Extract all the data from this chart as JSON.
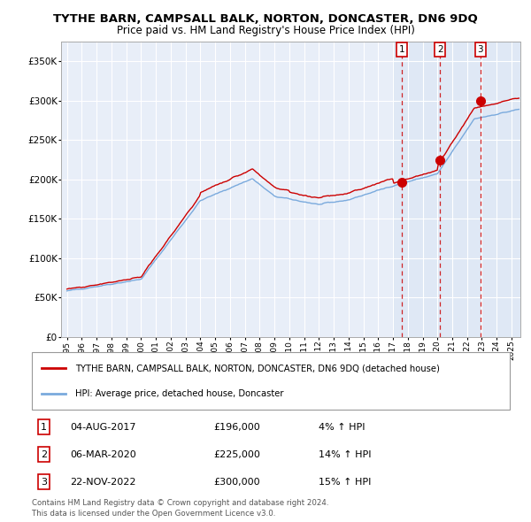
{
  "title": "TYTHE BARN, CAMPSALL BALK, NORTON, DONCASTER, DN6 9DQ",
  "subtitle": "Price paid vs. HM Land Registry's House Price Index (HPI)",
  "legend_red": "TYTHE BARN, CAMPSALL BALK, NORTON, DONCASTER, DN6 9DQ (detached house)",
  "legend_blue": "HPI: Average price, detached house, Doncaster",
  "transactions": [
    {
      "num": 1,
      "date": "04-AUG-2017",
      "price": 196000,
      "pct": "4%",
      "year": 2017.58
    },
    {
      "num": 2,
      "date": "06-MAR-2020",
      "price": 225000,
      "pct": "14%",
      "year": 2020.17
    },
    {
      "num": 3,
      "date": "22-NOV-2022",
      "price": 300000,
      "pct": "15%",
      "year": 2022.89
    }
  ],
  "footer1": "Contains HM Land Registry data © Crown copyright and database right 2024.",
  "footer2": "This data is licensed under the Open Government Licence v3.0.",
  "ylim": [
    0,
    375000
  ],
  "yticks": [
    0,
    50000,
    100000,
    150000,
    200000,
    250000,
    300000,
    350000
  ],
  "xlim_start": 1994.6,
  "xlim_end": 2025.6,
  "background_color": "#ffffff",
  "plot_bg": "#e8eef8",
  "shaded_start": 2017.0,
  "red_color": "#cc0000",
  "blue_color": "#7aaadd"
}
